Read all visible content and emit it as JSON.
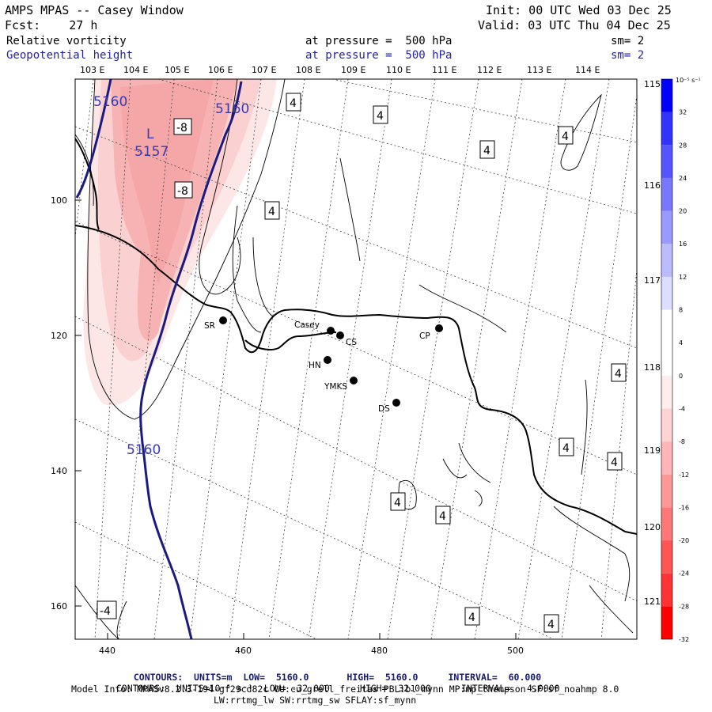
{
  "header": {
    "title": "AMPS MPAS -- Casey Window",
    "init": "Init: 00 UTC Wed 03 Dec 25",
    "fcst": "Fcst:    27 h",
    "valid": "Valid: 03 UTC Thu 04 Dec 25",
    "field1_name": "Relative vorticity",
    "field1_level": "at pressure =  500 hPa",
    "field1_sm": "sm= 2",
    "field2_name": "Geopotential height",
    "field2_level": "at pressure =  500 hPa",
    "field2_sm": "sm= 2"
  },
  "map": {
    "top_lon_labels": [
      "103 E",
      "104 E",
      "105 E",
      "106 E",
      "107 E",
      "108 E",
      "109 E",
      "110 E",
      "111 E",
      "112 E",
      "113 E",
      "114 E"
    ],
    "right_lon_labels": [
      "115 E",
      "116 E",
      "117 E",
      "118 E",
      "119 E",
      "120 E",
      "121 E"
    ],
    "x_ticks": [
      "440",
      "460",
      "480",
      "500"
    ],
    "y_ticks": [
      "100",
      "120",
      "140",
      "160"
    ],
    "stations": [
      "SR",
      "Casey",
      "CS",
      "HN",
      "YMKS",
      "CP",
      "DS"
    ],
    "height_labels": [
      "5160",
      "5160",
      "5160"
    ],
    "low_label": "L",
    "low_value": "5157",
    "vort_labels": [
      "-8",
      "-8",
      "4",
      "4",
      "4",
      "4",
      "4",
      "4",
      "4",
      "4",
      "4",
      "4",
      "4",
      "-4",
      "4"
    ]
  },
  "colorbar": {
    "unit": "10⁻⁵ s⁻¹",
    "labels": [
      "32",
      "28",
      "24",
      "20",
      "16",
      "12",
      "8",
      "4",
      "0",
      "-4",
      "-8",
      "-12",
      "-16",
      "-20",
      "-24",
      "-28",
      "-32"
    ],
    "colors": [
      "#0000ff",
      "#3333ff",
      "#5555ff",
      "#7777ff",
      "#9999ff",
      "#bbbbff",
      "#ddddff",
      "#ffffff",
      "#ffffff",
      "#ffecec",
      "#ffd3d3",
      "#ffb5b5",
      "#ff9797",
      "#ff7777",
      "#ff5555",
      "#ff3333",
      "#ff0000"
    ]
  },
  "footer": {
    "line1_a": "CONTOURS:  UNITS=m  LOW=  5160.0",
    "line1_b": "HIGH=  5160.0",
    "line1_c": "INTERVAL=  60.000",
    "line2_a": "CONTOURS:  UNITS=10⁻⁵ s⁻¹  LOW= -32.000",
    "line2_b": "HIGH=  32.000",
    "line2_c": "INTERVAL=   4.0000",
    "line3": "Model Info: MPASv8.2.3-194-gf29cd82c CU:cu_grell_freitas PBL:bl_mynn MP:mp_thompson SF:sf_noahmp 8.0",
    "line4": "LW:rrtmg_lw SW:rrtmg_sw SFLAY:sf_mynn"
  }
}
